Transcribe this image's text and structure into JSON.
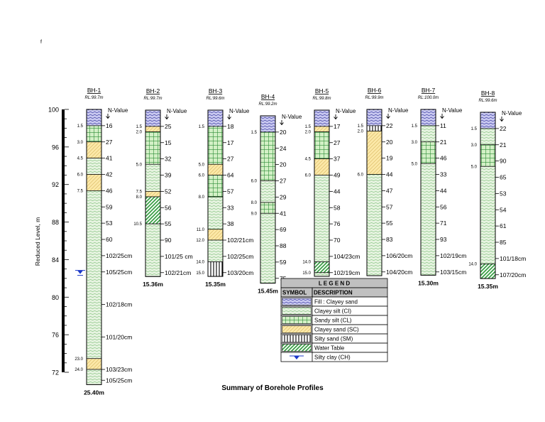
{
  "page_mark": "f",
  "caption": "Summary of Borehole Profiles",
  "axis": {
    "label": "Reduced Level, m",
    "min": 72,
    "max": 100,
    "tick_labels": [
      "100",
      "96",
      "92",
      "88",
      "84",
      "80",
      "76",
      "72"
    ],
    "water_table_rl": 82.7
  },
  "nvalue_label": "N-Value",
  "colors": {
    "fill": "#c8c8f0",
    "clayey_silt": "#e6f3e0",
    "sandy_silt": "#d3f0c6",
    "clayey_sand": "#fbe7a6",
    "silty_sand": "#ffffff",
    "water_table_hatch": "#3aa046",
    "marker": "#1c38c8"
  },
  "boreholes": [
    {
      "id": "BH-1",
      "rl": "RL:99.7m",
      "depth": "25.40m",
      "layers": [
        {
          "to": 1.5,
          "soil": "fill"
        },
        {
          "to": 3.0,
          "soil": "sandy_silt"
        },
        {
          "to": 4.5,
          "soil": "clayey_sand"
        },
        {
          "to": 6.0,
          "soil": "clayey_silt"
        },
        {
          "to": 7.5,
          "soil": "clayey_sand"
        },
        {
          "to": 23.0,
          "soil": "clayey_silt"
        },
        {
          "to": 24.0,
          "soil": "clayey_sand"
        },
        {
          "to": 25.4,
          "soil": "clayey_silt"
        }
      ],
      "depth_marks": [
        {
          "d": 1.5,
          "t": "1.5"
        },
        {
          "d": 3.0,
          "t": "3.0"
        },
        {
          "d": 4.5,
          "t": "4.5"
        },
        {
          "d": 6.0,
          "t": "6.0"
        },
        {
          "d": 7.5,
          "t": "7.5"
        },
        {
          "d": 23.0,
          "t": "23.0"
        },
        {
          "d": 24.0,
          "t": "24.0"
        }
      ],
      "nvalues": [
        {
          "d": 1.5,
          "t": "16"
        },
        {
          "d": 3.0,
          "t": "27"
        },
        {
          "d": 4.5,
          "t": "41"
        },
        {
          "d": 6.0,
          "t": "42"
        },
        {
          "d": 7.5,
          "t": "46"
        },
        {
          "d": 9.0,
          "t": "59"
        },
        {
          "d": 10.5,
          "t": "53"
        },
        {
          "d": 12.0,
          "t": "60"
        },
        {
          "d": 13.5,
          "t": "102/25cm"
        },
        {
          "d": 15.0,
          "t": "105/25cm"
        },
        {
          "d": 18.0,
          "t": "102/18cm"
        },
        {
          "d": 21.0,
          "t": "101/20cm"
        },
        {
          "d": 24.0,
          "t": "103/23cm"
        },
        {
          "d": 25.0,
          "t": "105/25cm"
        }
      ]
    },
    {
      "id": "BH-2",
      "rl": "RL:99.7m",
      "depth": "15.36m",
      "layers": [
        {
          "to": 1.5,
          "soil": "fill"
        },
        {
          "to": 2.0,
          "soil": "clayey_sand"
        },
        {
          "to": 5.0,
          "soil": "sandy_silt"
        },
        {
          "to": 7.5,
          "soil": "clayey_silt"
        },
        {
          "to": 8.0,
          "soil": "clayey_sand"
        },
        {
          "to": 10.5,
          "soil": "water_table"
        },
        {
          "to": 15.36,
          "soil": "clayey_silt"
        }
      ],
      "depth_marks": [
        {
          "d": 1.5,
          "t": "1.5"
        },
        {
          "d": 2.0,
          "t": "2.0"
        },
        {
          "d": 5.0,
          "t": "5.0"
        },
        {
          "d": 7.5,
          "t": "7.5"
        },
        {
          "d": 8.0,
          "t": "8.0"
        },
        {
          "d": 10.5,
          "t": "10.5"
        }
      ],
      "nvalues": [
        {
          "d": 1.5,
          "t": "25"
        },
        {
          "d": 3.0,
          "t": "15"
        },
        {
          "d": 4.5,
          "t": "32"
        },
        {
          "d": 6.0,
          "t": "39"
        },
        {
          "d": 7.5,
          "t": "52"
        },
        {
          "d": 9.0,
          "t": "56"
        },
        {
          "d": 10.5,
          "t": "55"
        },
        {
          "d": 12.0,
          "t": "90"
        },
        {
          "d": 13.5,
          "t": "101/25 cm"
        },
        {
          "d": 15.0,
          "t": "102/21cm"
        }
      ]
    },
    {
      "id": "BH-3",
      "rl": "RL:99.6m",
      "depth": "15.35m",
      "layers": [
        {
          "to": 1.5,
          "soil": "fill"
        },
        {
          "to": 5.0,
          "soil": "sandy_silt"
        },
        {
          "to": 6.0,
          "soil": "clayey_sand"
        },
        {
          "to": 8.0,
          "soil": "sandy_silt"
        },
        {
          "to": 11.0,
          "soil": "clayey_silt"
        },
        {
          "to": 12.0,
          "soil": "clayey_sand"
        },
        {
          "to": 14.0,
          "soil": "clayey_silt"
        },
        {
          "to": 15.35,
          "soil": "silty_sand"
        }
      ],
      "depth_marks": [
        {
          "d": 1.5,
          "t": "1.5"
        },
        {
          "d": 5.0,
          "t": "5.0"
        },
        {
          "d": 6.0,
          "t": "6.0"
        },
        {
          "d": 8.0,
          "t": "8.0"
        },
        {
          "d": 11.0,
          "t": "11.0"
        },
        {
          "d": 12.0,
          "t": "12.0"
        },
        {
          "d": 14.0,
          "t": "14.0"
        },
        {
          "d": 15.0,
          "t": "15.0"
        }
      ],
      "nvalues": [
        {
          "d": 1.5,
          "t": "18"
        },
        {
          "d": 3.0,
          "t": "17"
        },
        {
          "d": 4.5,
          "t": "27"
        },
        {
          "d": 6.0,
          "t": "64"
        },
        {
          "d": 7.5,
          "t": "57"
        },
        {
          "d": 9.0,
          "t": "33"
        },
        {
          "d": 10.5,
          "t": "38"
        },
        {
          "d": 12.0,
          "t": "102/21cm"
        },
        {
          "d": 13.5,
          "t": "102/25cm"
        },
        {
          "d": 15.0,
          "t": "103/20cm"
        }
      ]
    },
    {
      "id": "BH-4",
      "rl": "RL:99.2m",
      "depth": "15.45m",
      "layers": [
        {
          "to": 1.5,
          "soil": "fill"
        },
        {
          "to": 6.0,
          "soil": "sandy_silt"
        },
        {
          "to": 8.0,
          "soil": "clayey_silt"
        },
        {
          "to": 9.0,
          "soil": "sandy_silt"
        },
        {
          "to": 15.45,
          "soil": "clayey_silt"
        }
      ],
      "depth_marks": [
        {
          "d": 1.5,
          "t": "1.5"
        },
        {
          "d": 6.0,
          "t": "6.0"
        },
        {
          "d": 8.0,
          "t": "8.0"
        },
        {
          "d": 9.0,
          "t": "9.0"
        }
      ],
      "nvalues": [
        {
          "d": 1.5,
          "t": "20"
        },
        {
          "d": 3.0,
          "t": "24"
        },
        {
          "d": 4.5,
          "t": "20"
        },
        {
          "d": 6.0,
          "t": "27"
        },
        {
          "d": 7.5,
          "t": "29"
        },
        {
          "d": 9.0,
          "t": "41"
        },
        {
          "d": 10.5,
          "t": "69"
        },
        {
          "d": 12.0,
          "t": "88"
        },
        {
          "d": 13.5,
          "t": "59"
        },
        {
          "d": 15.0,
          "t": "75"
        }
      ]
    },
    {
      "id": "BH-5",
      "rl": "RL:99.8m",
      "depth": "15.34m",
      "layers": [
        {
          "to": 1.5,
          "soil": "fill"
        },
        {
          "to": 2.0,
          "soil": "clayey_sand"
        },
        {
          "to": 4.5,
          "soil": "sandy_silt"
        },
        {
          "to": 6.0,
          "soil": "clayey_sand"
        },
        {
          "to": 14.0,
          "soil": "clayey_silt"
        },
        {
          "to": 15.0,
          "soil": "water_table"
        },
        {
          "to": 15.34,
          "soil": "clayey_silt"
        }
      ],
      "depth_marks": [
        {
          "d": 1.5,
          "t": "1.5"
        },
        {
          "d": 2.0,
          "t": "2.0"
        },
        {
          "d": 4.5,
          "t": "4.5"
        },
        {
          "d": 6.0,
          "t": "6.0"
        },
        {
          "d": 14.0,
          "t": "14.0"
        },
        {
          "d": 15.0,
          "t": "15.0"
        }
      ],
      "nvalues": [
        {
          "d": 1.5,
          "t": "17"
        },
        {
          "d": 3.0,
          "t": "27"
        },
        {
          "d": 4.5,
          "t": "37"
        },
        {
          "d": 6.0,
          "t": "49"
        },
        {
          "d": 7.5,
          "t": "44"
        },
        {
          "d": 9.0,
          "t": "58"
        },
        {
          "d": 10.5,
          "t": "76"
        },
        {
          "d": 12.0,
          "t": "70"
        },
        {
          "d": 13.5,
          "t": "104/23cm"
        },
        {
          "d": 15.0,
          "t": "102/19cm"
        }
      ]
    },
    {
      "id": "BH-6",
      "rl": "RL:99.9m",
      "depth": "15.35m",
      "layers": [
        {
          "to": 1.5,
          "soil": "fill"
        },
        {
          "to": 2.0,
          "soil": "silty_sand"
        },
        {
          "to": 6.0,
          "soil": "clayey_sand"
        },
        {
          "to": 15.35,
          "soil": "clayey_silt"
        }
      ],
      "depth_marks": [
        {
          "d": 1.5,
          "t": "1.5"
        },
        {
          "d": 2.0,
          "t": "2.0"
        },
        {
          "d": 6.0,
          "t": "6.0"
        }
      ],
      "nvalues": [
        {
          "d": 1.5,
          "t": "22"
        },
        {
          "d": 3.0,
          "t": "20"
        },
        {
          "d": 4.5,
          "t": "19"
        },
        {
          "d": 6.0,
          "t": "44"
        },
        {
          "d": 7.5,
          "t": "47"
        },
        {
          "d": 9.0,
          "t": "57"
        },
        {
          "d": 10.5,
          "t": "55"
        },
        {
          "d": 12.0,
          "t": "83"
        },
        {
          "d": 13.5,
          "t": "106/20cm"
        },
        {
          "d": 15.0,
          "t": "104/20cm"
        }
      ]
    },
    {
      "id": "BH-7",
      "rl": "RL:100.0m",
      "depth": "15.30m",
      "layers": [
        {
          "to": 1.5,
          "soil": "fill"
        },
        {
          "to": 3.0,
          "soil": "clayey_silt"
        },
        {
          "to": 5.0,
          "soil": "sandy_silt"
        },
        {
          "to": 15.3,
          "soil": "clayey_silt"
        }
      ],
      "depth_marks": [
        {
          "d": 1.5,
          "t": "1.5"
        },
        {
          "d": 3.0,
          "t": "3.0"
        },
        {
          "d": 5.0,
          "t": "5.0"
        }
      ],
      "nvalues": [
        {
          "d": 1.5,
          "t": "11"
        },
        {
          "d": 3.0,
          "t": "21"
        },
        {
          "d": 4.5,
          "t": "46"
        },
        {
          "d": 6.0,
          "t": "33"
        },
        {
          "d": 7.5,
          "t": "44"
        },
        {
          "d": 9.0,
          "t": "56"
        },
        {
          "d": 10.5,
          "t": "71"
        },
        {
          "d": 12.0,
          "t": "93"
        },
        {
          "d": 13.5,
          "t": "102/19cm"
        },
        {
          "d": 15.0,
          "t": "103/15cm"
        }
      ]
    },
    {
      "id": "BH-8",
      "rl": "RL:99.6m",
      "depth": "15.35m",
      "layers": [
        {
          "to": 1.5,
          "soil": "fill"
        },
        {
          "to": 3.0,
          "soil": "clayey_silt"
        },
        {
          "to": 5.0,
          "soil": "sandy_silt"
        },
        {
          "to": 14.0,
          "soil": "clayey_silt"
        },
        {
          "to": 15.35,
          "soil": "water_table"
        }
      ],
      "depth_marks": [
        {
          "d": 1.5,
          "t": "1.5"
        },
        {
          "d": 3.0,
          "t": "3.0"
        },
        {
          "d": 5.0,
          "t": "5.0"
        },
        {
          "d": 14.0,
          "t": "14.0"
        }
      ],
      "nvalues": [
        {
          "d": 1.5,
          "t": "22"
        },
        {
          "d": 3.0,
          "t": "21"
        },
        {
          "d": 4.5,
          "t": "90"
        },
        {
          "d": 6.0,
          "t": "65"
        },
        {
          "d": 7.5,
          "t": "53"
        },
        {
          "d": 9.0,
          "t": "54"
        },
        {
          "d": 10.5,
          "t": "61"
        },
        {
          "d": 12.0,
          "t": "85"
        },
        {
          "d": 13.5,
          "t": "101/18cm"
        },
        {
          "d": 15.0,
          "t": "107/20cm"
        }
      ]
    }
  ],
  "legend": {
    "title": "L E G E N D",
    "symbol_header": "SYMBOL",
    "description_header": "DESCRIPTION",
    "rows": [
      {
        "soil": "fill",
        "label": "Fill : Clayey sand"
      },
      {
        "soil": "clayey_silt",
        "label": "Clayey silt (CI)"
      },
      {
        "soil": "sandy_silt",
        "label": "Sandy silt (CL)"
      },
      {
        "soil": "clayey_sand",
        "label": "Clayey sand (SC)"
      },
      {
        "soil": "silty_sand",
        "label": "Silty sand (SM)"
      },
      {
        "soil": "water_table",
        "label": "Water Table"
      },
      {
        "soil": "marker",
        "label": "Silty clay (CH)"
      }
    ]
  }
}
